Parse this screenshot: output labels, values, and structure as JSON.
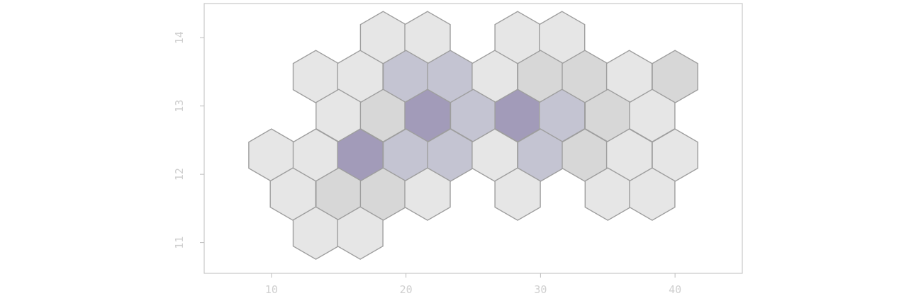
{
  "chart_data": {
    "type": "hexbin",
    "title": "",
    "xlabel": "",
    "ylabel": "",
    "xlim": [
      5,
      45
    ],
    "ylim": [
      10.55,
      14.5
    ],
    "x_ticks": [
      "10",
      "20",
      "30",
      "40"
    ],
    "y_ticks": [
      "11",
      "12",
      "13",
      "14"
    ],
    "grid": false,
    "legend": "none",
    "colors": {
      "level_1": "#e6e6e6",
      "level_2": "#d7d7d7",
      "level_3": "#c4c4d2",
      "level_4": "#a29bb9",
      "stroke": "#9e9e9e"
    },
    "cells": [
      {
        "x": 18.3,
        "y": 14.0,
        "level": 1
      },
      {
        "x": 21.6,
        "y": 14.0,
        "level": 1
      },
      {
        "x": 28.3,
        "y": 14.0,
        "level": 1
      },
      {
        "x": 31.6,
        "y": 14.0,
        "level": 1
      },
      {
        "x": 13.3,
        "y": 13.43,
        "level": 1
      },
      {
        "x": 16.6,
        "y": 13.43,
        "level": 1
      },
      {
        "x": 20.0,
        "y": 13.43,
        "level": 3
      },
      {
        "x": 23.3,
        "y": 13.43,
        "level": 3
      },
      {
        "x": 26.6,
        "y": 13.43,
        "level": 1
      },
      {
        "x": 30.0,
        "y": 13.43,
        "level": 2
      },
      {
        "x": 33.3,
        "y": 13.43,
        "level": 2
      },
      {
        "x": 36.6,
        "y": 13.43,
        "level": 1
      },
      {
        "x": 40.0,
        "y": 13.43,
        "level": 2
      },
      {
        "x": 15.0,
        "y": 12.86,
        "level": 1
      },
      {
        "x": 18.3,
        "y": 12.86,
        "level": 2
      },
      {
        "x": 21.6,
        "y": 12.86,
        "level": 4
      },
      {
        "x": 25.0,
        "y": 12.86,
        "level": 3
      },
      {
        "x": 28.3,
        "y": 12.86,
        "level": 4
      },
      {
        "x": 31.6,
        "y": 12.86,
        "level": 3
      },
      {
        "x": 35.0,
        "y": 12.86,
        "level": 2
      },
      {
        "x": 38.3,
        "y": 12.86,
        "level": 1
      },
      {
        "x": 10.0,
        "y": 12.28,
        "level": 1
      },
      {
        "x": 13.3,
        "y": 12.28,
        "level": 1
      },
      {
        "x": 16.6,
        "y": 12.28,
        "level": 4
      },
      {
        "x": 20.0,
        "y": 12.28,
        "level": 3
      },
      {
        "x": 23.3,
        "y": 12.28,
        "level": 3
      },
      {
        "x": 26.6,
        "y": 12.28,
        "level": 1
      },
      {
        "x": 30.0,
        "y": 12.28,
        "level": 3
      },
      {
        "x": 33.3,
        "y": 12.28,
        "level": 2
      },
      {
        "x": 36.6,
        "y": 12.28,
        "level": 1
      },
      {
        "x": 40.0,
        "y": 12.28,
        "level": 1
      },
      {
        "x": 11.6,
        "y": 11.71,
        "level": 1
      },
      {
        "x": 15.0,
        "y": 11.71,
        "level": 2
      },
      {
        "x": 18.3,
        "y": 11.71,
        "level": 2
      },
      {
        "x": 21.6,
        "y": 11.71,
        "level": 1
      },
      {
        "x": 28.3,
        "y": 11.71,
        "level": 1
      },
      {
        "x": 35.0,
        "y": 11.71,
        "level": 1
      },
      {
        "x": 38.3,
        "y": 11.71,
        "level": 1
      },
      {
        "x": 13.3,
        "y": 11.14,
        "level": 1
      },
      {
        "x": 16.6,
        "y": 11.14,
        "level": 1
      }
    ]
  }
}
